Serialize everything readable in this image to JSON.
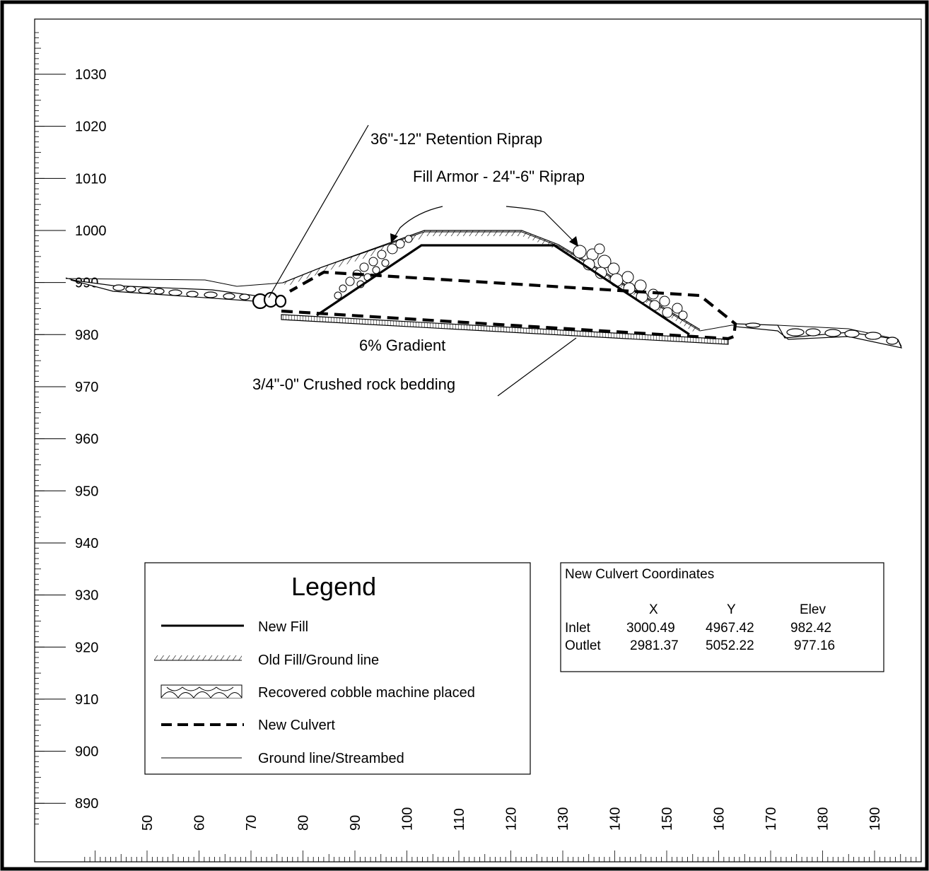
{
  "chart_data": {
    "type": "diagram",
    "x_ticks": [
      "50",
      "60",
      "70",
      "80",
      "90",
      "100",
      "110",
      "120",
      "130",
      "140",
      "150",
      "160",
      "170",
      "180",
      "190"
    ],
    "y_ticks": [
      "1030",
      "1020",
      "1010",
      "1000",
      "990",
      "980",
      "970",
      "960",
      "950",
      "940",
      "930",
      "920",
      "910",
      "900",
      "890"
    ],
    "xlim": [
      38,
      199
    ],
    "ylim": [
      886,
      1038
    ]
  },
  "annotations": {
    "retention_riprap": "36\"-12\" Retention Riprap",
    "fill_armor": "Fill Armor - 24\"-6\" Riprap",
    "gradient": "6% Gradient",
    "bedding": "3/4\"-0\" Crushed rock bedding"
  },
  "legend": {
    "title": "Legend",
    "items": [
      {
        "key": "new_fill",
        "label": "New Fill"
      },
      {
        "key": "old_fill",
        "label": "Old Fill/Ground line"
      },
      {
        "key": "cobble",
        "label": "Recovered cobble machine placed"
      },
      {
        "key": "new_culvert",
        "label": "New Culvert"
      },
      {
        "key": "ground_line",
        "label": "Ground line/Streambed"
      }
    ]
  },
  "coordinates_table": {
    "title": "New Culvert Coordinates",
    "headers": [
      "X",
      "Y",
      "Elev"
    ],
    "rows": [
      {
        "label": "Inlet",
        "x": "3000.49",
        "y": "4967.42",
        "elev": "982.42"
      },
      {
        "label": "Outlet",
        "x": "2981.37",
        "y": "5052.22",
        "elev": "977.16"
      }
    ]
  }
}
